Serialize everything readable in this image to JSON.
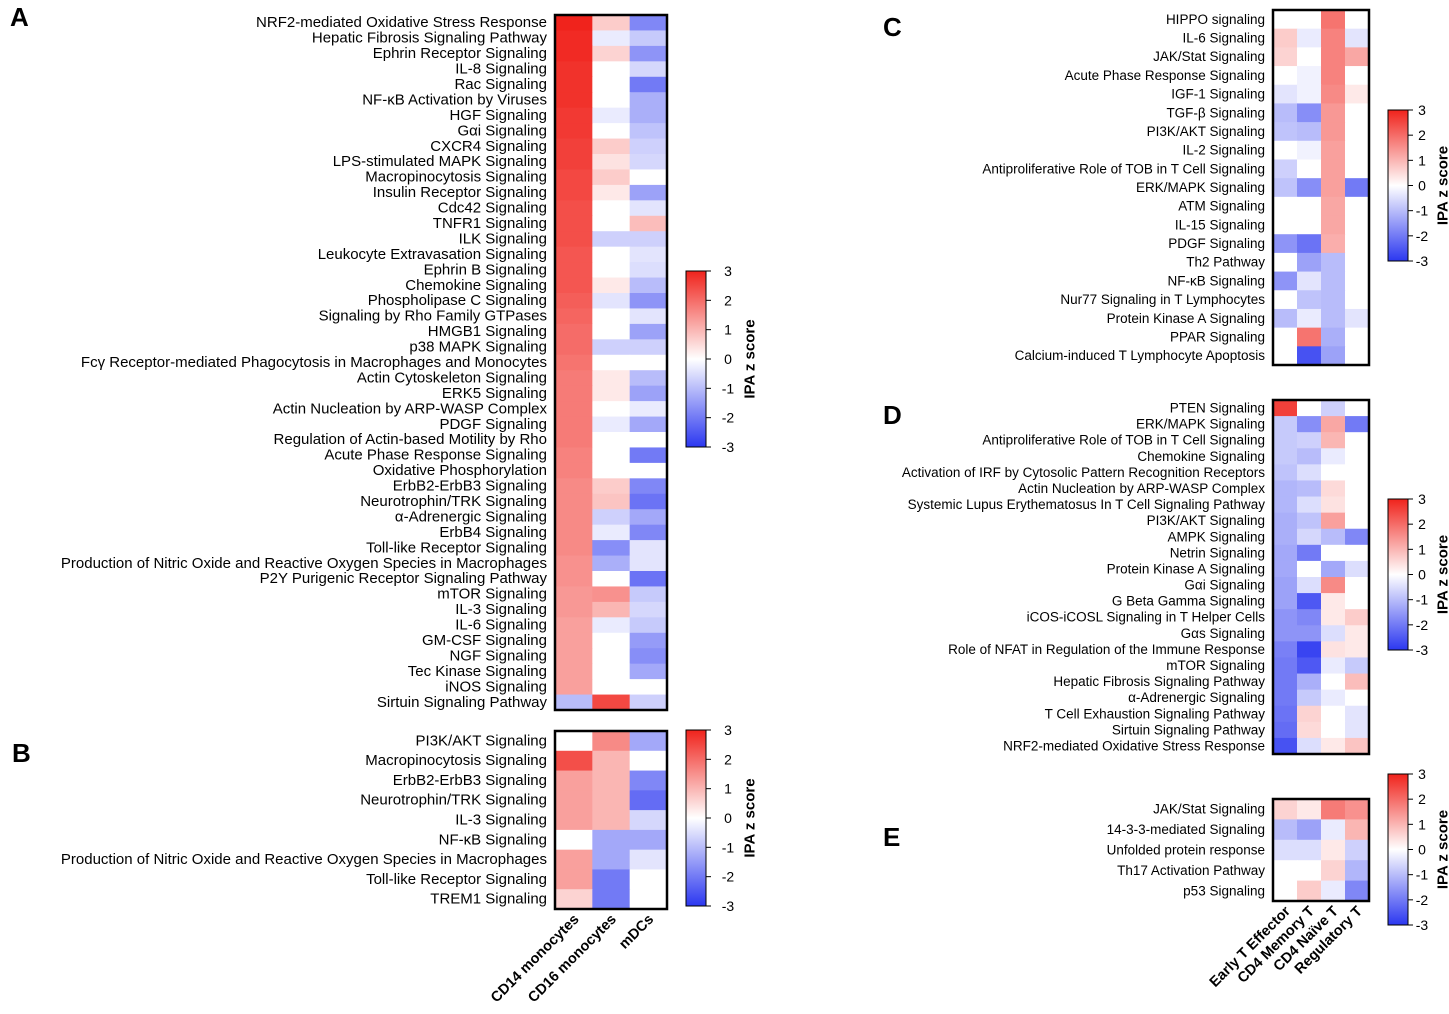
{
  "figure": {
    "colorbar": {
      "title": "IPA z score",
      "ticks": [
        "3",
        "2",
        "1",
        "0",
        "-1",
        "-2",
        "-3"
      ],
      "min": -3,
      "max": 3
    },
    "colors": {
      "negative": "#2b37f0",
      "zero": "#ffffff",
      "positive": "#f0231c",
      "border": "#000000"
    }
  },
  "chart_data": [
    {
      "type": "heatmap",
      "panel": "A",
      "columns": [
        "CD14 monocytes",
        "CD16 monocytes",
        "mDCs"
      ],
      "rows": [
        "NRF2-mediated Oxidative Stress Response",
        "Hepatic Fibrosis Signaling Pathway",
        "Ephrin Receptor Signaling",
        "IL-8 Signaling",
        "Rac Signaling",
        "NF-κB Activation by Viruses",
        "HGF Signaling",
        "Gαi Signaling",
        "CXCR4 Signaling",
        "LPS-stimulated MAPK Signaling",
        "Macropinocytosis Signaling",
        "Insulin Receptor Signaling",
        "Cdc42 Signaling",
        "TNFR1 Signaling",
        "ILK Signaling",
        "Leukocyte Extravasation Signaling",
        "Ephrin B Signaling",
        "Chemokine Signaling",
        "Phospholipase C Signaling",
        "Signaling by Rho Family GTPases",
        "HMGB1 Signaling",
        "p38 MAPK Signaling",
        "Fcγ Receptor-mediated Phagocytosis in Macrophages and Monocytes",
        "Actin Cytoskeleton Signaling",
        "ERK5 Signaling",
        "Actin Nucleation by ARP-WASP Complex",
        "PDGF Signaling",
        "Regulation of Actin-based Motility by Rho",
        "Acute Phase Response Signaling",
        "Oxidative Phosphorylation",
        "ErbB2-ErbB3 Signaling",
        "Neurotrophin/TRK Signaling",
        "α-Adrenergic Signaling",
        "ErbB4 Signaling",
        "Toll-like Receptor Signaling",
        "Production of Nitric Oxide and Reactive Oxygen Species in Macrophages",
        "P2Y Purigenic Receptor Signaling Pathway",
        "mTOR Signaling",
        "IL-3 Signaling",
        "IL-6 Signaling",
        "GM-CSF Signaling",
        "NGF Signaling",
        "Tec Kinase Signaling",
        "iNOS Signaling",
        "Sirtuin Signaling Pathway"
      ],
      "values": [
        [
          3.0,
          0.7,
          -1.8
        ],
        [
          2.9,
          -0.3,
          -0.8
        ],
        [
          2.9,
          0.6,
          -1.6
        ],
        [
          2.8,
          0,
          -0.6
        ],
        [
          2.8,
          0,
          -2.0
        ],
        [
          2.8,
          0,
          -1.2
        ],
        [
          2.7,
          -0.3,
          -1.2
        ],
        [
          2.7,
          0,
          -0.9
        ],
        [
          2.6,
          0.7,
          -0.7
        ],
        [
          2.6,
          0.4,
          -0.6
        ],
        [
          2.5,
          0.7,
          0
        ],
        [
          2.5,
          0.3,
          -1.4
        ],
        [
          2.4,
          0,
          -0.4
        ],
        [
          2.4,
          0,
          0.9
        ],
        [
          2.4,
          -0.7,
          -0.7
        ],
        [
          2.3,
          0,
          -0.4
        ],
        [
          2.3,
          0,
          -0.5
        ],
        [
          2.3,
          0.3,
          -1.0
        ],
        [
          2.2,
          -0.4,
          -1.6
        ],
        [
          2.1,
          0,
          -0.4
        ],
        [
          2.0,
          0,
          -1.4
        ],
        [
          2.0,
          -0.7,
          -0.7
        ],
        [
          1.9,
          0,
          0
        ],
        [
          1.8,
          0.3,
          -1.0
        ],
        [
          1.8,
          0.3,
          -1.4
        ],
        [
          1.8,
          0,
          -0.3
        ],
        [
          1.8,
          -0.3,
          -1.3
        ],
        [
          1.8,
          0,
          0
        ],
        [
          1.7,
          0,
          -2.0
        ],
        [
          1.7,
          0,
          0
        ],
        [
          1.6,
          0.7,
          -1.8
        ],
        [
          1.6,
          0.8,
          -2.1
        ],
        [
          1.6,
          -0.7,
          -1.3
        ],
        [
          1.6,
          -0.3,
          -1.8
        ],
        [
          1.6,
          -1.7,
          -0.4
        ],
        [
          1.5,
          -1.2,
          -0.4
        ],
        [
          1.5,
          0,
          -2.1
        ],
        [
          1.4,
          1.5,
          -0.8
        ],
        [
          1.4,
          1.0,
          -0.6
        ],
        [
          1.3,
          -0.3,
          -0.8
        ],
        [
          1.3,
          0,
          -1.5
        ],
        [
          1.3,
          0,
          -1.7
        ],
        [
          1.3,
          0,
          -1.3
        ],
        [
          1.3,
          0,
          0
        ],
        [
          -1.0,
          2.5,
          -0.7
        ]
      ]
    },
    {
      "type": "heatmap",
      "panel": "B",
      "columns": [
        "CD14 monocytes",
        "CD16 monocytes",
        "mDCs"
      ],
      "rows": [
        "PI3K/AKT Signaling",
        "Macropinocytosis Signaling",
        "ErbB2-ErbB3 Signaling",
        "Neurotrophin/TRK Signaling",
        "IL-3 Signaling",
        "NF-κB Signaling",
        "Production of Nitric Oxide and Reactive Oxygen Species in Macrophages",
        "Toll-like Receptor Signaling",
        "TREM1 Signaling"
      ],
      "values": [
        [
          0,
          1.6,
          -1.3
        ],
        [
          2.4,
          1.0,
          0
        ],
        [
          1.3,
          1.0,
          -1.8
        ],
        [
          1.3,
          1.0,
          -2.2
        ],
        [
          1.3,
          1.0,
          -0.6
        ],
        [
          0,
          -1.3,
          -1.3
        ],
        [
          1.3,
          -1.3,
          -0.4
        ],
        [
          1.3,
          -2.0,
          0
        ],
        [
          0.6,
          -2.0,
          0
        ]
      ]
    },
    {
      "type": "heatmap",
      "panel": "C",
      "columns": [
        "Early T Effector",
        "CD4 Memory T",
        "CD4 Naïve T",
        "Regulatory T"
      ],
      "rows": [
        "HIPPO signaling",
        "IL-6 Signaling",
        "JAK/Stat Signaling",
        "Acute Phase Response Signaling",
        "IGF-1 Signaling",
        "TGF-β Signaling",
        "PI3K/AKT Signaling",
        "IL-2 Signaling",
        "Antiproliferative Role of TOB in T Cell Signaling",
        "ERK/MAPK Signaling",
        "ATM Signaling",
        "IL-15 Signaling",
        "PDGF Signaling",
        "Th2 Pathway",
        "NF-κB Signaling",
        "Nur77 Signaling in T Lymphocytes",
        "Protein Kinase A Signaling",
        "PPAR Signaling",
        "Calcium-induced T Lymphocyte Apoptosis"
      ],
      "values": [
        [
          0,
          0,
          1.9,
          0
        ],
        [
          0.7,
          -0.3,
          1.7,
          -0.4
        ],
        [
          0.6,
          0,
          1.7,
          1.2
        ],
        [
          0,
          -0.2,
          1.7,
          0
        ],
        [
          -0.4,
          -0.2,
          1.6,
          0.3
        ],
        [
          -1.0,
          -1.7,
          1.4,
          0
        ],
        [
          -0.9,
          -1.0,
          1.4,
          0
        ],
        [
          0,
          -0.2,
          1.3,
          0
        ],
        [
          -0.7,
          0,
          1.3,
          0
        ],
        [
          -0.9,
          -1.7,
          1.3,
          -2.0
        ],
        [
          0,
          0,
          1.2,
          0
        ],
        [
          0,
          0,
          1.2,
          0
        ],
        [
          -1.6,
          -2.1,
          1.1,
          0
        ],
        [
          0,
          -1.4,
          -1.0,
          0
        ],
        [
          -1.6,
          -0.4,
          -1.0,
          0
        ],
        [
          0,
          -0.9,
          -1.0,
          0
        ],
        [
          -1.0,
          -0.3,
          -1.0,
          -0.4
        ],
        [
          0,
          1.9,
          -1.2,
          0
        ],
        [
          0,
          -2.6,
          -1.4,
          0
        ]
      ]
    },
    {
      "type": "heatmap",
      "panel": "D",
      "columns": [
        "Early T Effector",
        "CD4 Memory T",
        "CD4 Naïve T",
        "Regulatory T"
      ],
      "rows": [
        "PTEN Signaling",
        "ERK/MAPK Signaling",
        "Antiproliferative Role of TOB in T Cell Signaling",
        "Chemokine Signaling",
        "Activation of IRF by Cytosolic Pattern Recognition Receptors",
        "Actin Nucleation by ARP-WASP Complex",
        "Systemic Lupus Erythematosus In T Cell Signaling Pathway",
        "PI3K/AKT Signaling",
        "AMPK Signaling",
        "Netrin Signaling",
        "Protein Kinase A Signaling",
        "Gαi Signaling",
        "G Beta Gamma Signaling",
        "iCOS-iCOSL Signaling in T Helper Cells",
        "Gαs Signaling",
        "Role of NFAT in Regulation of the Immune Response",
        "mTOR Signaling",
        "Hepatic Fibrosis Signaling Pathway",
        "α-Adrenergic Signaling",
        "T Cell Exhaustion Signaling Pathway",
        "Sirtuin Signaling Pathway",
        "NRF2-mediated Oxidative Stress Response"
      ],
      "values": [
        [
          2.6,
          0,
          -0.7,
          0
        ],
        [
          -0.8,
          -1.7,
          1.2,
          -2.0
        ],
        [
          -0.8,
          -0.7,
          1.0,
          0
        ],
        [
          -0.8,
          -1.0,
          -0.3,
          0
        ],
        [
          -0.9,
          -0.5,
          0,
          0
        ],
        [
          -1.1,
          -1.0,
          0.5,
          0
        ],
        [
          -1.1,
          -0.5,
          0.4,
          0
        ],
        [
          -1.2,
          -0.9,
          1.3,
          0
        ],
        [
          -1.2,
          -0.6,
          -1.0,
          -1.8
        ],
        [
          -1.3,
          -2.0,
          0,
          0
        ],
        [
          -1.3,
          0,
          -1.3,
          -0.5
        ],
        [
          -1.4,
          -0.5,
          1.6,
          0
        ],
        [
          -1.4,
          -2.5,
          0.3,
          0
        ],
        [
          -1.6,
          -1.8,
          0.3,
          0.7
        ],
        [
          -1.6,
          -1.6,
          -0.5,
          0.3
        ],
        [
          -1.9,
          -2.8,
          0.4,
          0.3
        ],
        [
          -2.0,
          -2.5,
          -0.3,
          -0.8
        ],
        [
          -2.0,
          -1.2,
          0,
          0.9
        ],
        [
          -2.0,
          -0.8,
          -0.3,
          0
        ],
        [
          -2.1,
          0.6,
          0,
          -0.4
        ],
        [
          -2.2,
          0.5,
          0,
          -0.4
        ],
        [
          -2.6,
          -0.5,
          0.3,
          0.8
        ]
      ]
    },
    {
      "type": "heatmap",
      "panel": "E",
      "columns": [
        "Early T Effector",
        "CD4 Memory T",
        "CD4 Naïve T",
        "Regulatory T"
      ],
      "rows": [
        "JAK/Stat Signaling",
        "14-3-3-mediated Signaling",
        "Unfolded protein response",
        "Th17 Activation Pathway",
        "p53 Signaling"
      ],
      "values": [
        [
          0.6,
          0.3,
          1.8,
          1.5
        ],
        [
          -1.0,
          -1.4,
          -0.3,
          1.0
        ],
        [
          -0.5,
          -0.5,
          0.3,
          -0.7
        ],
        [
          0,
          0,
          0.6,
          -1.1
        ],
        [
          0,
          0.7,
          -0.3,
          -1.8
        ]
      ]
    }
  ]
}
